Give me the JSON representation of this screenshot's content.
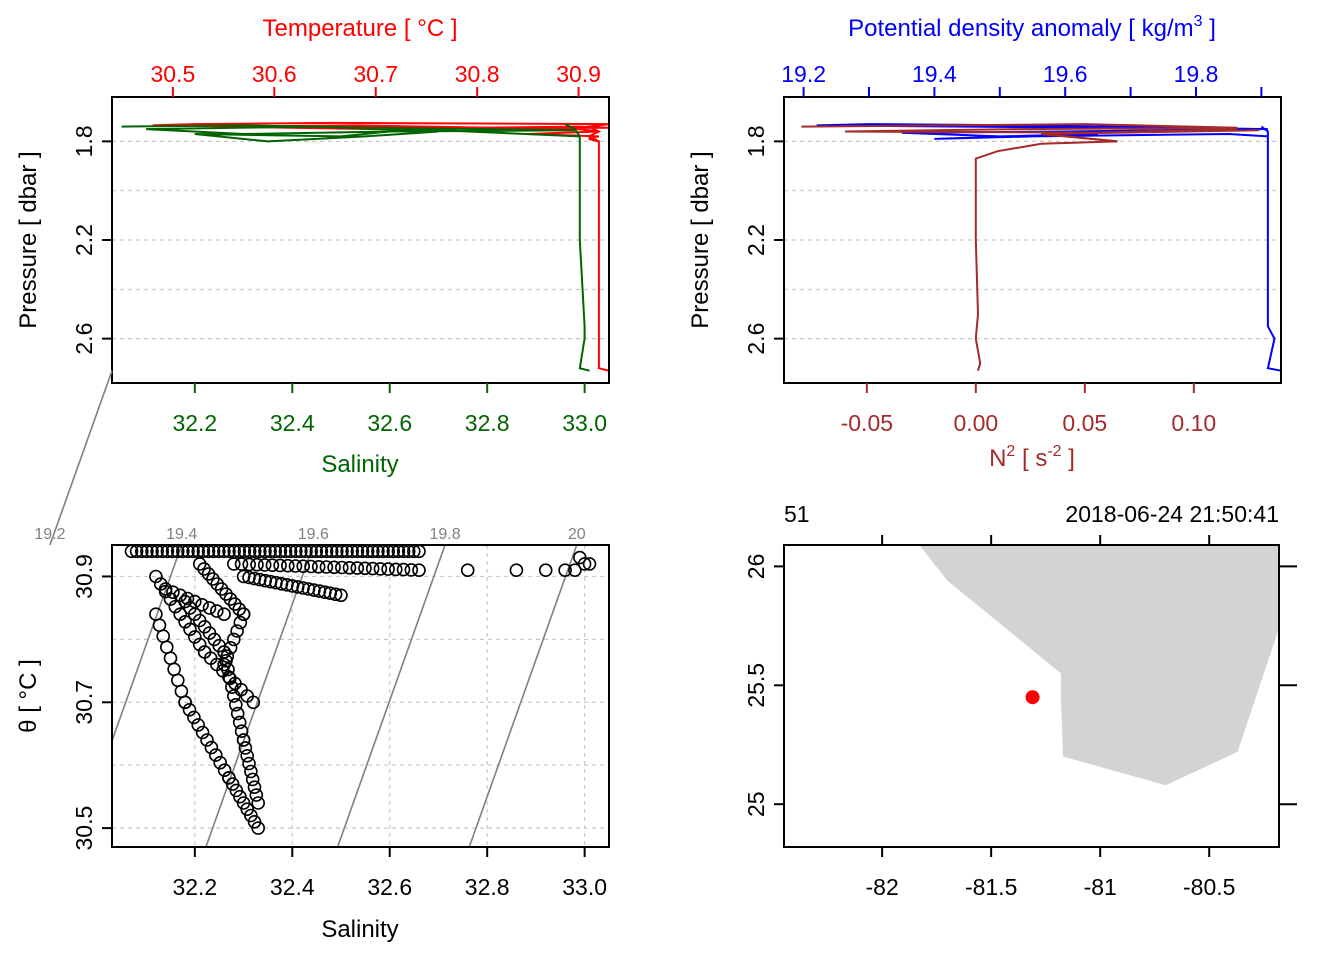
{
  "colors": {
    "temperature": "#ff0000",
    "salinity": "#006400",
    "density": "#0000ff",
    "n2": "#a52a2a",
    "isopycnal": "#808080",
    "land": "#d3d3d3",
    "station": "#ff0000"
  },
  "chart_data": [
    {
      "id": "profile-ts",
      "type": "line",
      "title": "Temperature [ °C ]",
      "xlabel": "Salinity",
      "ylabel": "Pressure [ dbar ]",
      "y_ticks": [
        "1.8",
        "2.2",
        "2.6"
      ],
      "y_range": [
        2.78,
        1.62
      ],
      "temperature_ticks": [
        "30.5",
        "30.6",
        "30.7",
        "30.8",
        "30.9"
      ],
      "temperature_range": [
        30.44,
        30.93
      ],
      "salinity_ticks": [
        "32.2",
        "32.4",
        "32.6",
        "32.8",
        "33.0"
      ],
      "salinity_range": [
        32.03,
        33.05
      ],
      "series": [
        {
          "name": "temperature",
          "p": [
            1.73,
            1.74,
            1.76,
            1.78,
            1.8,
            1.9,
            2.2,
            2.5,
            2.6,
            2.72,
            2.73
          ],
          "v": [
            30.93,
            30.91,
            30.92,
            30.91,
            30.92,
            30.92,
            30.92,
            30.92,
            30.92,
            30.92,
            30.93
          ]
        },
        {
          "name": "salinity",
          "p": [
            1.73,
            1.75,
            1.78,
            1.8,
            1.9,
            2.2,
            2.55,
            2.6,
            2.72,
            2.73
          ],
          "v": [
            32.96,
            32.98,
            32.99,
            32.99,
            32.99,
            32.99,
            33.0,
            33.0,
            32.99,
            33.01
          ]
        }
      ]
    },
    {
      "id": "profile-density-n2",
      "type": "line",
      "title": "Potential density anomaly [ kg/m",
      "title_sup": "3",
      "title_tail": " ]",
      "xlabel": "N",
      "xlabel_sup": "2",
      "xlabel_tail": " [ s",
      "xlabel_sup2": "-2",
      "xlabel_end": " ]",
      "ylabel": "Pressure [ dbar ]",
      "y_ticks": [
        "1.8",
        "2.2",
        "2.6"
      ],
      "y_range": [
        2.78,
        1.62
      ],
      "density_ticks": [
        "19.2",
        "19.4",
        "19.6",
        "19.8"
      ],
      "density_range": [
        19.17,
        19.93
      ],
      "n2_ticks": [
        "-0.05",
        "0.00",
        "0.05",
        "0.10"
      ],
      "n2_range": [
        -0.088,
        0.14
      ],
      "series": [
        {
          "name": "density",
          "p": [
            1.74,
            1.76,
            1.78,
            1.8,
            1.9,
            2.2,
            2.55,
            2.6,
            2.72,
            2.73
          ],
          "v": [
            19.9,
            19.91,
            19.91,
            19.91,
            19.91,
            19.91,
            19.91,
            19.92,
            19.91,
            19.93
          ]
        },
        {
          "name": "N2",
          "p": [
            1.75,
            1.77,
            1.8,
            1.81,
            1.84,
            1.87,
            1.9,
            2.2,
            2.5,
            2.6,
            2.7,
            2.73
          ],
          "v": [
            0.12,
            0.03,
            0.065,
            0.03,
            0.01,
            0.0,
            0.0,
            0.0,
            0.001,
            0.0,
            0.002,
            0.001
          ]
        }
      ]
    },
    {
      "id": "ts-diagram",
      "type": "scatter",
      "xlabel": "Salinity",
      "ylabel": "θ [ °C ]",
      "x_ticks": [
        "32.2",
        "32.4",
        "32.6",
        "32.8",
        "33.0"
      ],
      "x_range": [
        32.03,
        33.05
      ],
      "y_ticks": [
        "30.5",
        "30.7",
        "30.9"
      ],
      "y_range": [
        30.47,
        30.95
      ],
      "isopycnals": [
        "19.2",
        "19.4",
        "19.6",
        "19.8",
        "20"
      ],
      "isopycnal_values": [
        19.2,
        19.4,
        19.6,
        19.8,
        20.0
      ]
    },
    {
      "id": "station-map",
      "type": "map",
      "station_label": "51",
      "datetime": "2018-06-24 21:50:41",
      "x_ticks": [
        "-82",
        "-81.5",
        "-81",
        "-80.5"
      ],
      "lon_range": [
        -82.45,
        -80.18
      ],
      "y_ticks": [
        "25",
        "25.5",
        "26"
      ],
      "lat_range": [
        24.82,
        26.09
      ],
      "station": {
        "lon": -81.31,
        "lat": 25.45
      },
      "land_lon": [
        -81.83,
        -81.7,
        -81.3,
        -81.18,
        -81.18,
        -81.17,
        -80.7,
        -80.37,
        -80.18,
        -80.18
      ],
      "land_lat": [
        26.09,
        25.94,
        25.64,
        25.55,
        25.44,
        25.2,
        25.08,
        25.22,
        25.74,
        26.09
      ]
    }
  ]
}
